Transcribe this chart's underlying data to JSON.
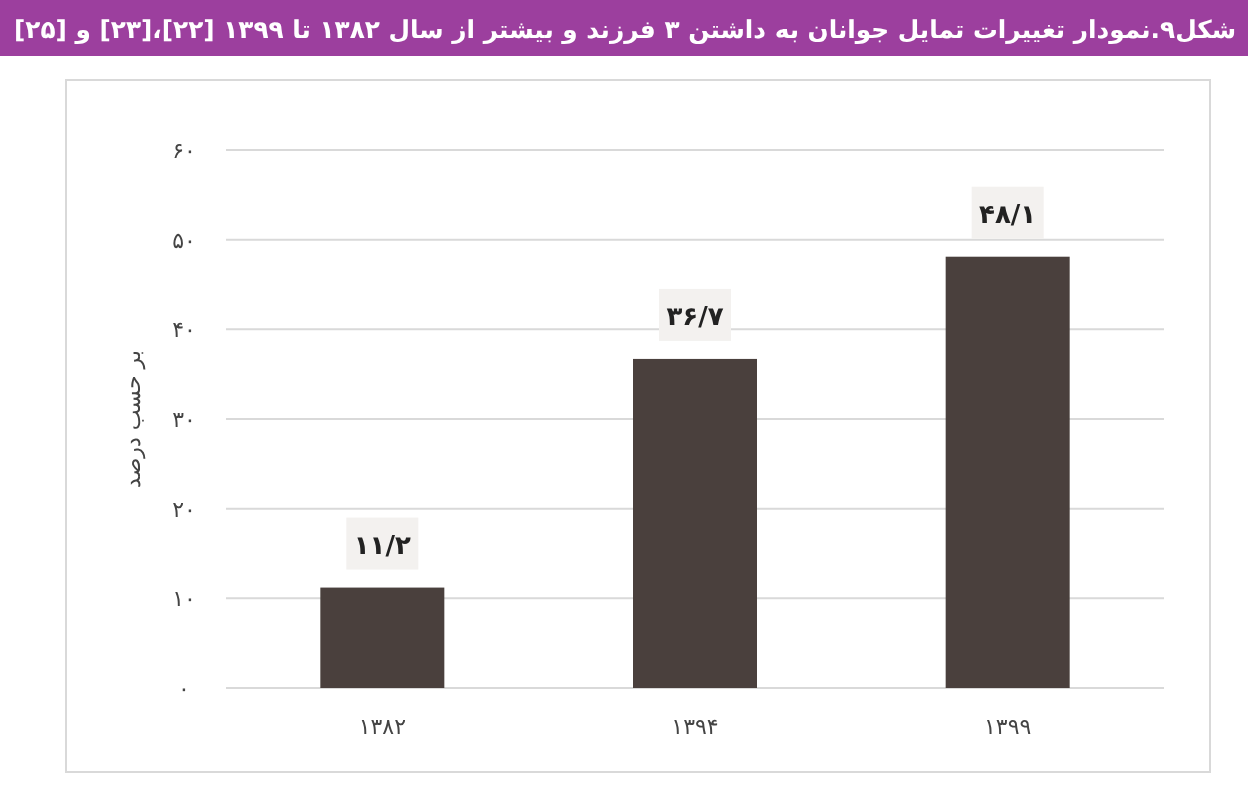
{
  "chart_data": {
    "type": "bar",
    "title": "شکل۹.نمودار تغییرات تمایل جوانان به داشتن ۳ فرزند و بیشتر از سال ۱۳۸۲ تا ۱۳۹۹ [۲۲]،[۲۳] و [۲۵]",
    "ylabel": "بر حسب درصد",
    "categories": [
      "۱۳۸۲",
      "۱۳۹۴",
      "۱۳۹۹"
    ],
    "values": [
      11.2,
      36.7,
      48.1
    ],
    "value_labels": [
      "۱۱/۲",
      "۳۶/۷",
      "۴۸/۱"
    ],
    "color": "#4a403d",
    "ylim": [
      0,
      60
    ],
    "yticks": [
      {
        "value": 0,
        "label": "۰"
      },
      {
        "value": 10,
        "label": "۱۰"
      },
      {
        "value": 20,
        "label": "۲۰"
      },
      {
        "value": 30,
        "label": "۳۰"
      },
      {
        "value": 40,
        "label": "۴۰"
      },
      {
        "value": 50,
        "label": "۵۰"
      },
      {
        "value": 60,
        "label": "۶۰"
      }
    ],
    "grid": "y"
  }
}
